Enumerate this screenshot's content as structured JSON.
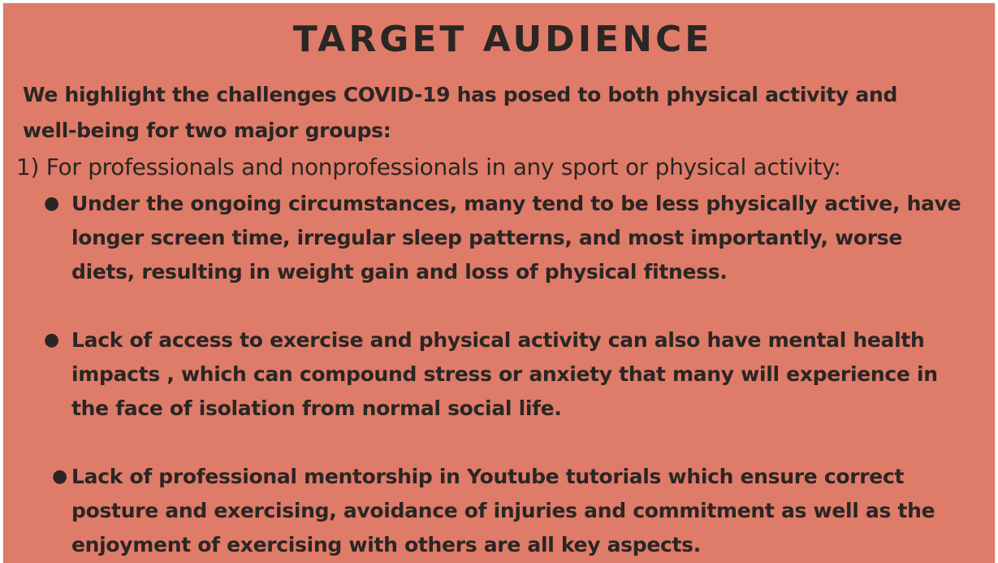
{
  "slide": {
    "title": "TARGET AUDIENCE",
    "intro": "We highlight the challenges COVID-19 has posed to both physical activity and well-being for two major groups:",
    "group_heading": "1) For professionals and nonprofessionals in any sport or physical activity:",
    "bullet_glyph": "●",
    "bullets": [
      "Under the ongoing circumstances, many tend to be less physically active, have longer screen time, irregular sleep patterns, and most importantly, worse diets, resulting in weight gain and loss of physical fitness.",
      "Lack of access to exercise and physical activity can also have mental health impacts , which can compound stress or anxiety that many will experience in the face of isolation from normal social life.",
      "Lack of professional mentorship in Youtube tutorials which ensure correct posture and  exercising, avoidance of injuries and commitment  as well as the enjoyment of exercising with others are all key aspects."
    ],
    "background_color": "#df7b69",
    "text_color": "#2a2624"
  }
}
